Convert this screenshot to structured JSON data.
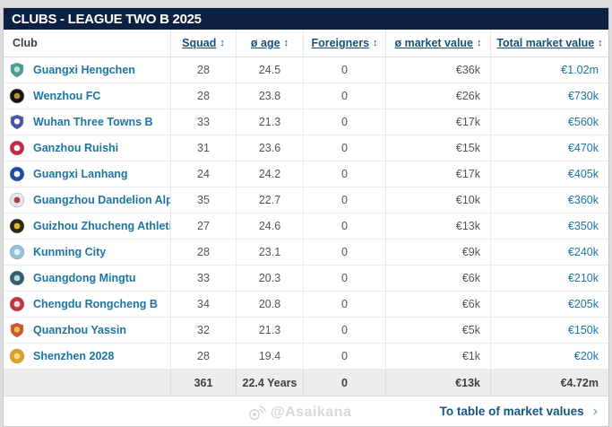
{
  "title_bar": {
    "title": "CLUBS - LEAGUE TWO B 2025"
  },
  "table": {
    "sort_icon_glyph": "↕",
    "columns": [
      {
        "label": "Club",
        "sortable": false
      },
      {
        "label": "Squad",
        "sortable": true
      },
      {
        "label": "ø age",
        "sortable": true
      },
      {
        "label": "Foreigners",
        "sortable": true
      },
      {
        "label": "ø market value",
        "sortable": true
      },
      {
        "label": "Total market value",
        "sortable": true
      }
    ],
    "rows": [
      {
        "club": "Guangxi Hengchen",
        "squad": "28",
        "avg_age": "24.5",
        "foreigners": "0",
        "avg_market_value": "€36k",
        "total_market_value": "€1.02m",
        "logo": {
          "shape": "shield",
          "color1": "#49a08f",
          "color2": "#c4e3d6"
        }
      },
      {
        "club": "Wenzhou FC",
        "squad": "28",
        "avg_age": "23.8",
        "foreigners": "0",
        "avg_market_value": "€26k",
        "total_market_value": "€730k",
        "logo": {
          "shape": "circle",
          "color1": "#16130e",
          "color2": "#b98d3e"
        }
      },
      {
        "club": "Wuhan Three Towns B",
        "squad": "33",
        "avg_age": "21.3",
        "foreigners": "0",
        "avg_market_value": "€17k",
        "total_market_value": "€560k",
        "logo": {
          "shape": "shield",
          "color1": "#4655a5",
          "color2": "#ffffff"
        }
      },
      {
        "club": "Ganzhou Ruishi",
        "squad": "31",
        "avg_age": "23.6",
        "foreigners": "0",
        "avg_market_value": "€15k",
        "total_market_value": "€470k",
        "logo": {
          "shape": "circle",
          "color1": "#c62b44",
          "color2": "#ffffff"
        }
      },
      {
        "club": "Guangxi Lanhang",
        "squad": "24",
        "avg_age": "24.2",
        "foreigners": "0",
        "avg_market_value": "€17k",
        "total_market_value": "€405k",
        "logo": {
          "shape": "circle",
          "color1": "#1c4da6",
          "color2": "#ffffff"
        }
      },
      {
        "club": "Guangzhou Dandelion Alpha",
        "squad": "35",
        "avg_age": "22.7",
        "foreigners": "0",
        "avg_market_value": "€10k",
        "total_market_value": "€360k",
        "logo": {
          "shape": "circle",
          "color1": "#e3e6ee",
          "color2": "#b63a42"
        }
      },
      {
        "club": "Guizhou Zhucheng Athletic",
        "squad": "27",
        "avg_age": "24.6",
        "foreigners": "0",
        "avg_market_value": "€13k",
        "total_market_value": "€350k",
        "logo": {
          "shape": "circle",
          "color1": "#2b2417",
          "color2": "#e2bc23"
        }
      },
      {
        "club": "Kunming City",
        "squad": "28",
        "avg_age": "23.1",
        "foreigners": "0",
        "avg_market_value": "€9k",
        "total_market_value": "€240k",
        "logo": {
          "shape": "circle",
          "color1": "#8ec1dd",
          "color2": "#e1f0f8"
        }
      },
      {
        "club": "Guangdong Mingtu",
        "squad": "33",
        "avg_age": "20.3",
        "foreigners": "0",
        "avg_market_value": "€6k",
        "total_market_value": "€210k",
        "logo": {
          "shape": "circle",
          "color1": "#335f6e",
          "color2": "#bcd6dc"
        }
      },
      {
        "club": "Chengdu Rongcheng B",
        "squad": "34",
        "avg_age": "20.8",
        "foreigners": "0",
        "avg_market_value": "€6k",
        "total_market_value": "€205k",
        "logo": {
          "shape": "circle",
          "color1": "#c03540",
          "color2": "#f0dcdc"
        }
      },
      {
        "club": "Quanzhou Yassin",
        "squad": "32",
        "avg_age": "21.3",
        "foreigners": "0",
        "avg_market_value": "€5k",
        "total_market_value": "€150k",
        "logo": {
          "shape": "shield",
          "color1": "#d2562b",
          "color2": "#eec05a"
        }
      },
      {
        "club": "Shenzhen 2028",
        "squad": "28",
        "avg_age": "19.4",
        "foreigners": "0",
        "avg_market_value": "€1k",
        "total_market_value": "€20k",
        "logo": {
          "shape": "circle",
          "color1": "#d9a31f",
          "color2": "#f4dc8e"
        }
      }
    ],
    "totals": {
      "squad": "361",
      "avg_age": "22.4 Years",
      "foreigners": "0",
      "avg_market_value": "€13k",
      "total_market_value": "€4.72m"
    }
  },
  "footer_bar": {
    "watermark": "@Asaikana",
    "link_label": "To table of market values",
    "link_chevron": "›"
  },
  "colors": {
    "title_bar_bg": "#0c2142",
    "header_link": "#17507a",
    "club_link": "#1d75a3",
    "text_gray": "#555555",
    "totals_bg": "#ededed",
    "page_bg": "#dcdcdc"
  }
}
